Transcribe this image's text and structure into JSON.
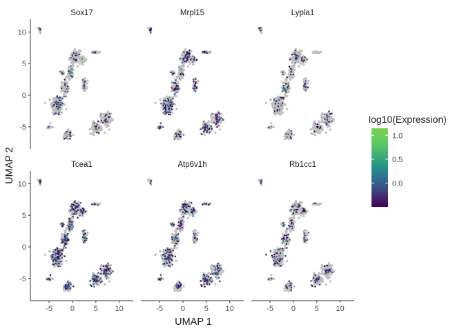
{
  "chart_data": {
    "type": "scatter",
    "facets": [
      "Sox17",
      "Mrpl15",
      "Lypla1",
      "Tcea1",
      "Atp6v1h",
      "Rb1cc1"
    ],
    "xlabel": "UMAP 1",
    "ylabel": "UMAP 2",
    "xlim": [
      -9,
      13
    ],
    "ylim": [
      -8.5,
      12
    ],
    "x_ticks": [
      -5,
      0,
      5,
      10
    ],
    "y_ticks": [
      -5,
      0,
      5,
      10
    ],
    "x_tick_labels": [
      "-5",
      "0",
      "5",
      "10"
    ],
    "y_tick_labels": [
      "-5",
      "0",
      "5",
      "10"
    ],
    "grid": false,
    "legend": {
      "title": "log10(Expression)",
      "position": "right",
      "range": [
        -0.5,
        1.15
      ],
      "ticks": [
        -0.0,
        0.5,
        1.0
      ],
      "tick_labels": [
        "0.0",
        "0.5",
        "1.0"
      ],
      "colors": [
        "#440154",
        "#3b528b",
        "#21908c",
        "#5dc963",
        "#7ad151"
      ]
    },
    "background_color": "#bebebe",
    "clusters": [
      {
        "x": -3.2,
        "y": -1.6,
        "sx": 1.2,
        "sy": 1.5
      },
      {
        "x": -1.6,
        "y": 1.2,
        "sx": 0.6,
        "sy": 1.3
      },
      {
        "x": -0.4,
        "y": 3.6,
        "sx": 0.5,
        "sy": 0.9
      },
      {
        "x": 0.6,
        "y": 6.0,
        "sx": 1.0,
        "sy": 0.9
      },
      {
        "x": 2.2,
        "y": 5.6,
        "sx": 0.7,
        "sy": 0.5
      },
      {
        "x": 2.6,
        "y": 1.6,
        "sx": 0.4,
        "sy": 0.9
      },
      {
        "x": -1.0,
        "y": -6.2,
        "sx": 0.7,
        "sy": 0.7
      },
      {
        "x": 7.2,
        "y": -3.8,
        "sx": 0.9,
        "sy": 1.0
      },
      {
        "x": 5.0,
        "y": -5.2,
        "sx": 1.0,
        "sy": 0.8
      },
      {
        "x": -7.0,
        "y": 10.4,
        "sx": 0.3,
        "sy": 0.4
      },
      {
        "x": -2.2,
        "y": 3.5,
        "sx": 0.4,
        "sy": 0.3
      },
      {
        "x": 5.0,
        "y": 6.8,
        "sx": 0.7,
        "sy": 0.15
      },
      {
        "x": -5.0,
        "y": -5.0,
        "sx": 0.3,
        "sy": 0.3
      }
    ]
  }
}
